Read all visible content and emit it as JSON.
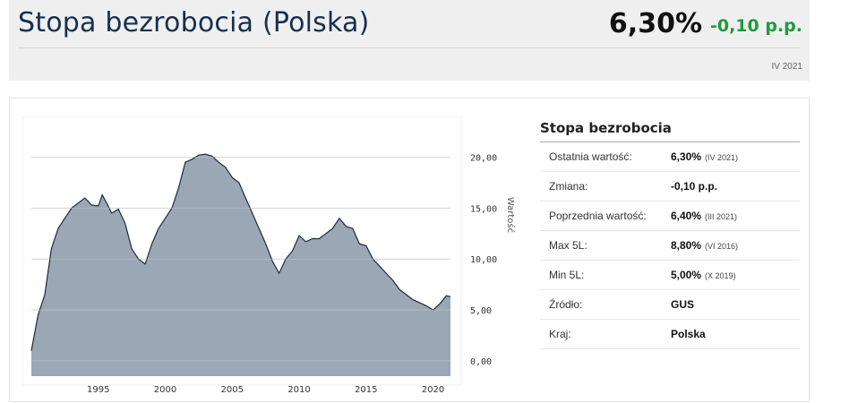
{
  "header": {
    "title": "Stopa bezrobocia (Polska)",
    "value": "6,30%",
    "change": "-0,10 p.p.",
    "period": "IV 2021"
  },
  "info": {
    "title": "Stopa bezrobocia",
    "rows": [
      {
        "label": "Ostatnia wartość:",
        "value": "6,30%",
        "sub": "(IV 2021)"
      },
      {
        "label": "Zmiana:",
        "value": "-0,10 p.p.",
        "sub": ""
      },
      {
        "label": "Poprzednia wartość:",
        "value": "6,40%",
        "sub": "(III 2021)"
      },
      {
        "label": "Max 5L:",
        "value": "8,80%",
        "sub": "(VI 2016)"
      },
      {
        "label": "Min 5L:",
        "value": "5,00%",
        "sub": "(X 2019)"
      },
      {
        "label": "Źródło:",
        "value": "GUS",
        "sub": ""
      },
      {
        "label": "Kraj:",
        "value": "Polska",
        "sub": ""
      }
    ]
  },
  "chart_data": {
    "type": "area",
    "ylabel": "Wartość",
    "xlim": [
      1990.0,
      2021.3
    ],
    "ylim": [
      -1.5,
      24
    ],
    "yticks": [
      "0,00",
      "5,00",
      "10,00",
      "15,00",
      "20,00"
    ],
    "ytick_values": [
      0,
      5,
      10,
      15,
      20
    ],
    "xticks": [
      "1995",
      "2000",
      "2005",
      "2010",
      "2015",
      "2020"
    ],
    "xtick_values": [
      1995,
      2000,
      2005,
      2010,
      2015,
      2020
    ],
    "fill_color": "#9ba7b4",
    "line_color": "#1b2b3c",
    "series": [
      {
        "x": [
          1990.0,
          1990.5,
          1991.0,
          1991.5,
          1992.0,
          1992.5,
          1993.0,
          1993.5,
          1994.0,
          1994.5,
          1995.0,
          1995.3,
          1995.7,
          1996.0,
          1996.5,
          1997.0,
          1997.5,
          1998.0,
          1998.5,
          1999.0,
          1999.5,
          2000.0,
          2000.5,
          2001.0,
          2001.5,
          2002.0,
          2002.5,
          2003.0,
          2003.5,
          2004.0,
          2004.5,
          2005.0,
          2005.5,
          2006.0,
          2006.5,
          2007.0,
          2007.5,
          2008.0,
          2008.5,
          2009.0,
          2009.5,
          2010.0,
          2010.5,
          2011.0,
          2011.5,
          2012.0,
          2012.5,
          2013.0,
          2013.5,
          2014.0,
          2014.5,
          2015.0,
          2015.5,
          2016.0,
          2016.5,
          2017.0,
          2017.5,
          2018.0,
          2018.5,
          2019.0,
          2019.5,
          2020.0,
          2020.5,
          2021.0,
          2021.3
        ],
        "y": [
          1.0,
          4.5,
          6.5,
          11.0,
          13.0,
          14.0,
          15.0,
          15.5,
          16.0,
          15.3,
          15.2,
          16.3,
          15.3,
          14.5,
          14.9,
          13.5,
          11.0,
          10.0,
          9.5,
          11.5,
          13.0,
          14.0,
          15.0,
          17.0,
          19.5,
          19.8,
          20.2,
          20.3,
          20.1,
          19.5,
          19.0,
          18.0,
          17.5,
          16.0,
          14.5,
          13.0,
          11.5,
          9.8,
          8.6,
          10.0,
          10.8,
          12.3,
          11.7,
          12.0,
          12.0,
          12.5,
          13.0,
          14.0,
          13.2,
          13.0,
          11.5,
          11.3,
          10.0,
          9.3,
          8.6,
          7.9,
          7.0,
          6.5,
          6.0,
          5.7,
          5.4,
          5.0,
          5.6,
          6.4,
          6.3
        ]
      }
    ]
  }
}
